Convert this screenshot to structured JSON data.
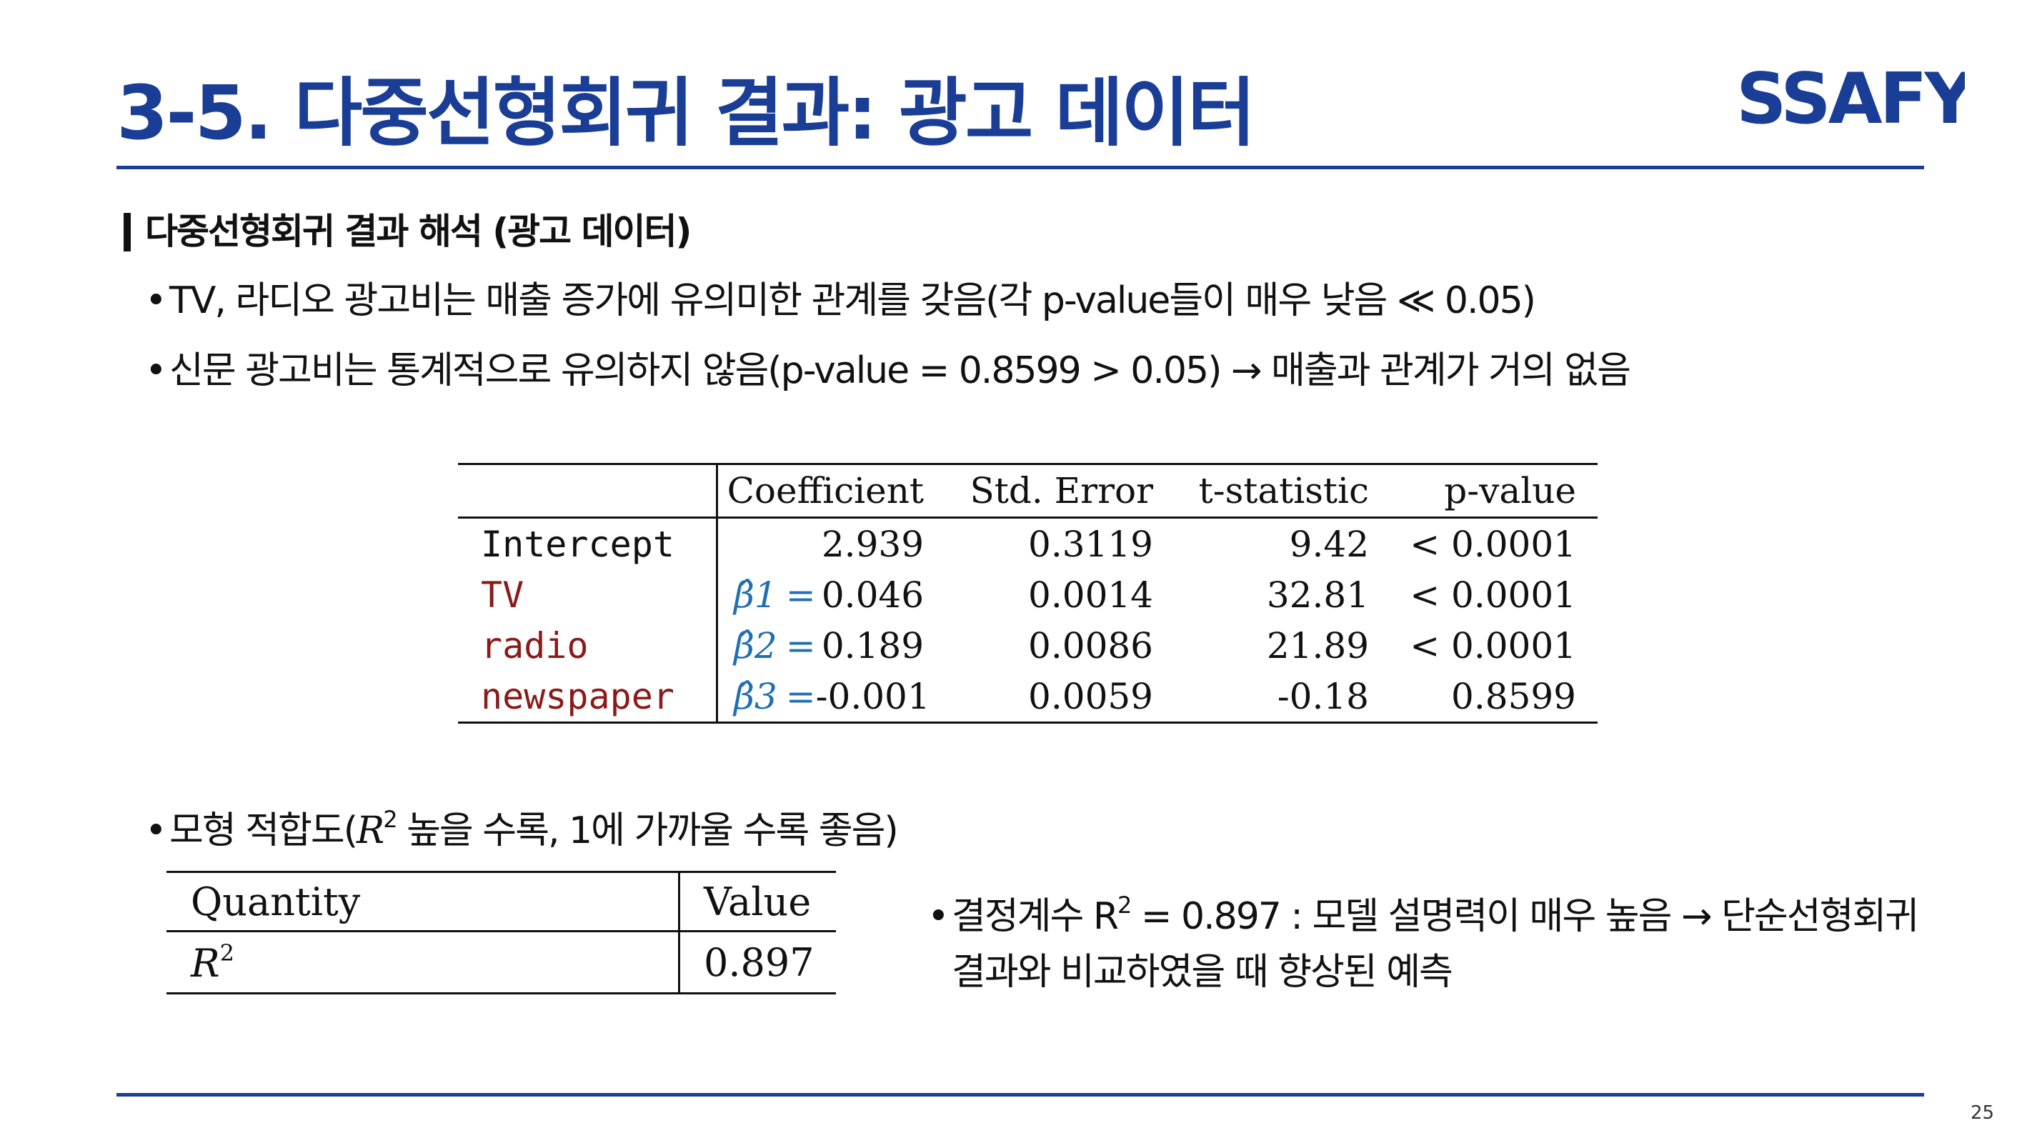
{
  "slide": {
    "title": "3-5. 다중선형회귀 결과: 광고 데이터",
    "logo_text": "SSAFY",
    "section_heading": "다중선형회귀 결과 해석 (광고 데이터)",
    "bullets": [
      "TV, 라디오 광고비는 매출 증가에 유의미한 관계를 갖음(각 p-value들이 매우 낮음 ≪ 0.05)",
      "신문 광고비는 통계적으로 유의하지 않음(p-value = 0.8599 > 0.05) → 매출과 관계가 거의 없음"
    ],
    "fit_bullet": {
      "prefix": "모형 적합도(",
      "r": "R",
      "sup": "2",
      "suffix": " 높을 수록, 1에 가까울 수록 좋음)"
    },
    "r2_bullet": {
      "line1_prefix": "결정계수 R",
      "line1_sup": "2",
      "line1_suffix": " = 0.897 : 모델 설명력이 매우 높음 → 단순선형회귀",
      "line2": "결과와 비교하였을 때 향상된 예측"
    },
    "page_number": "25",
    "colors": {
      "title": "#1a3d96",
      "rule": "#1a3d96",
      "variable": "#8b1a1a",
      "beta": "#1f6fb4"
    }
  },
  "regression_table": {
    "headers": [
      "",
      "Coefficient",
      "Std. Error",
      "t-statistic",
      "p-value"
    ],
    "rows": [
      {
        "name": "Intercept",
        "beta": "",
        "coef": "2.939",
        "se": "0.3119",
        "t": "9.42",
        "p": "< 0.0001"
      },
      {
        "name": "TV",
        "beta": "β̂1",
        "coef": "0.046",
        "se": "0.0014",
        "t": "32.81",
        "p": "< 0.0001"
      },
      {
        "name": "radio",
        "beta": "β̂2",
        "coef": "0.189",
        "se": "0.0086",
        "t": "21.89",
        "p": "< 0.0001"
      },
      {
        "name": "newspaper",
        "beta": "β̂3",
        "coef": "-0.001",
        "se": "0.0059",
        "t": "-0.18",
        "p": "0.8599"
      }
    ],
    "equals": "="
  },
  "fit_table": {
    "headers": [
      "Quantity",
      "Value"
    ],
    "quantity_symbol": "R",
    "quantity_sup": "2",
    "value": "0.897"
  }
}
